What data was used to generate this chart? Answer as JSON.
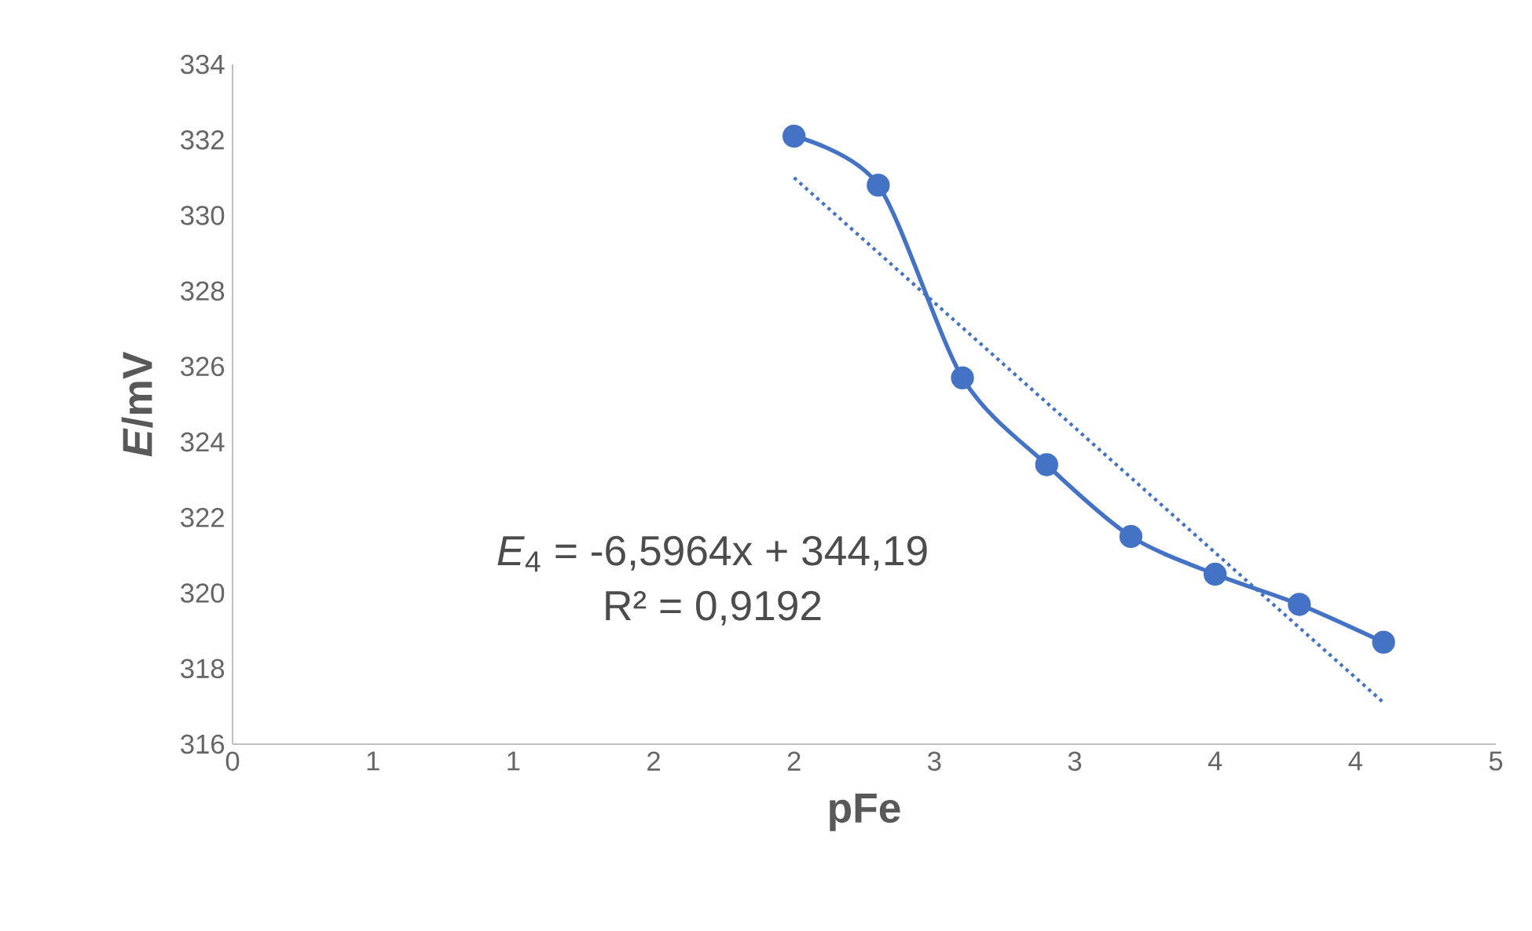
{
  "chart_data": {
    "type": "line",
    "xlabel": "pFe",
    "ylabel": "*E*/mV",
    "xlim": [
      0,
      4.5
    ],
    "ylim": [
      316,
      334
    ],
    "xticks": [
      {
        "value": 0,
        "label": "0"
      },
      {
        "value": 0.5,
        "label": "1"
      },
      {
        "value": 1,
        "label": "1"
      },
      {
        "value": 1.5,
        "label": "2"
      },
      {
        "value": 2,
        "label": "2"
      },
      {
        "value": 2.5,
        "label": "3"
      },
      {
        "value": 3,
        "label": "3"
      },
      {
        "value": 3.5,
        "label": "4"
      },
      {
        "value": 4,
        "label": "4"
      },
      {
        "value": 4.5,
        "label": "5"
      }
    ],
    "yticks": [
      316,
      318,
      320,
      322,
      324,
      326,
      328,
      330,
      332,
      334
    ],
    "marker": "circle",
    "grid": false,
    "series": [
      {
        "color": "#4472c4",
        "x": [
          2.0,
          2.3,
          2.6,
          2.9,
          3.2,
          3.5,
          3.8,
          4.1
        ],
        "values": [
          332.1,
          330.8,
          325.7,
          323.4,
          321.5,
          320.5,
          319.7,
          318.7
        ]
      },
      {
        "color": "#4472c4",
        "marker": "none",
        "line_style": "dotted",
        "x": [
          2.0,
          4.1
        ],
        "values": [
          331.0,
          317.1
        ]
      }
    ],
    "annotations": [
      "*E*$_{4}$ = -6,5964x + 344,19",
      "R² = 0,9192"
    ]
  }
}
